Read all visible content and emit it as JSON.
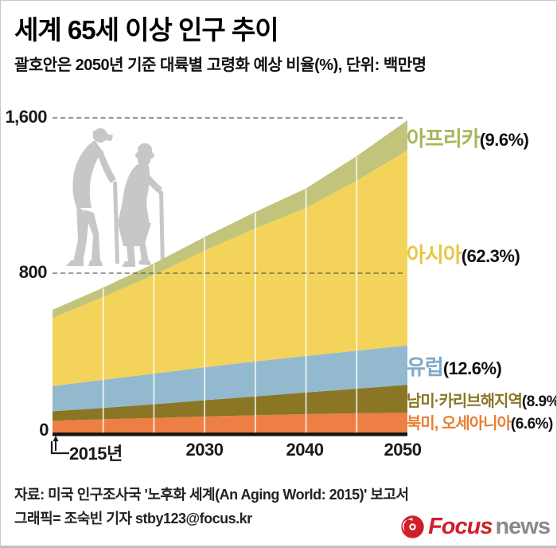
{
  "header": {
    "title": "세계 65세 이상 인구 추이",
    "subtitle": "괄호안은 2050년 기준 대륙별 고령화 예상 비율(%), 단위: 백만명"
  },
  "chart_data": {
    "type": "area",
    "stacked": true,
    "title": "세계 65세 이상 인구 추이",
    "unit": "백만명",
    "x": [
      2015,
      2020,
      2025,
      2030,
      2035,
      2040,
      2045,
      2050
    ],
    "series_bottom_to_top": [
      {
        "name": "북미, 오세아니아",
        "color": "#ee7f44",
        "pct_2050": "6.6%",
        "values": [
          63,
          70,
          77,
          84,
          90,
          96,
          100,
          103
        ]
      },
      {
        "name": "남미·카리브해지역",
        "color": "#8a7624",
        "pct_2050": "8.9%",
        "values": [
          47,
          57,
          68,
          81,
          94,
          108,
          123,
          139
        ]
      },
      {
        "name": "유럽",
        "color": "#92b9ce",
        "pct_2050": "12.6%",
        "values": [
          126,
          140,
          153,
          165,
          175,
          182,
          190,
          197
        ]
      },
      {
        "name": "아시아",
        "color": "#f3d35a",
        "pct_2050": "62.3%",
        "values": [
          341,
          414,
          493,
          583,
          665,
          740,
          850,
          975
        ]
      },
      {
        "name": "아프리카",
        "color": "#c2c47c",
        "pct_2050": "9.6%",
        "values": [
          40,
          47,
          57,
          68,
          82,
          98,
          122,
          150
        ]
      }
    ],
    "ylim": [
      0,
      1600
    ],
    "yticks": [
      "0",
      "800",
      "1,600"
    ],
    "xticks": [
      "2015년",
      "2030",
      "2040",
      "2050"
    ],
    "grid": {
      "h_dashed_at": [
        800,
        1600
      ],
      "v_white_every_5yr": true
    },
    "legend_position": "right"
  },
  "legend": {
    "items": [
      {
        "label": "아프리카",
        "pct": "(9.6%)",
        "color": "#aab45a"
      },
      {
        "label": "아시아",
        "pct": "(62.3%)",
        "color": "#e9c63e"
      },
      {
        "label": "유럽",
        "pct": "(12.6%)",
        "color": "#7fa9c9"
      },
      {
        "label": "남미·카리브해지역",
        "pct": "(8.9%)",
        "color": "#8a7624"
      },
      {
        "label": "북미, 오세아니아",
        "pct": "(6.6%)",
        "color": "#e97f35"
      }
    ]
  },
  "footer": {
    "source": "자료: 미국 인구조사국 '노후화 세계(An Aging World: 2015)' 보고서",
    "credit": "그래픽= 조숙빈 기자 stby123@focus.kr"
  },
  "logo": {
    "brand": "Focus",
    "suffix": "news",
    "brand_color": "#d0202a",
    "suffix_color": "#87898e"
  }
}
